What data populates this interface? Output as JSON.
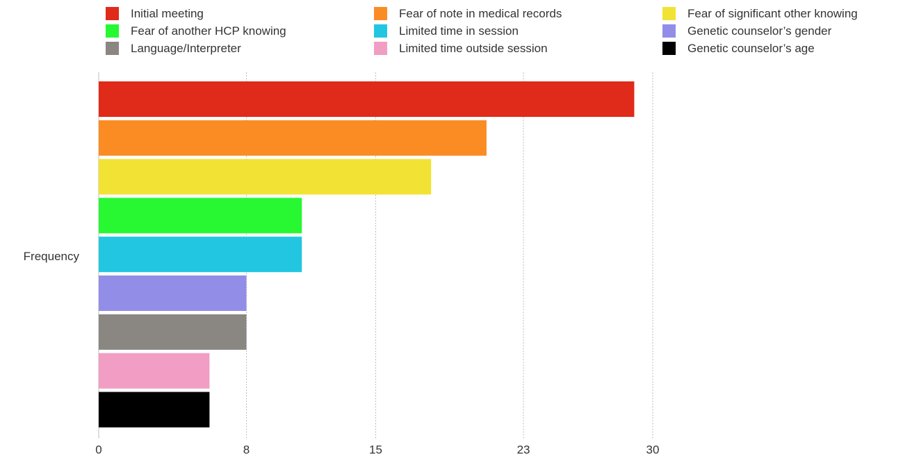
{
  "chart_data": {
    "type": "bar",
    "orientation": "horizontal",
    "category_label": "Frequency",
    "xlim": [
      0,
      30
    ],
    "x_ticks": [
      0,
      8,
      15,
      23,
      30
    ],
    "grid": true,
    "legend_position": "top",
    "series": [
      {
        "name": "Initial meeting",
        "value": 29,
        "color": "#e02a1a"
      },
      {
        "name": "Fear of note in medical records",
        "value": 21,
        "color": "#fb8c24"
      },
      {
        "name": "Fear of significant other knowing",
        "value": 18,
        "color": "#f2e233"
      },
      {
        "name": "Fear of another HCP knowing",
        "value": 11,
        "color": "#28f831"
      },
      {
        "name": "Limited time in session",
        "value": 11,
        "color": "#22c6e0"
      },
      {
        "name": "Genetic counselor’s gender",
        "value": 8,
        "color": "#928ee8"
      },
      {
        "name": "Language/Interpreter",
        "value": 8,
        "color": "#8a8682"
      },
      {
        "name": "Limited time outside session",
        "value": 6,
        "color": "#f19dc4"
      },
      {
        "name": "Genetic counselor’s age",
        "value": 6,
        "color": "#000000"
      }
    ],
    "legend_order": [
      "Initial meeting",
      "Fear of note in medical records",
      "Fear of significant other knowing",
      "Fear of another HCP knowing",
      "Limited time in session",
      "Genetic counselor’s gender",
      "Language/Interpreter",
      "Limited time outside session",
      "Genetic counselor’s age"
    ]
  }
}
